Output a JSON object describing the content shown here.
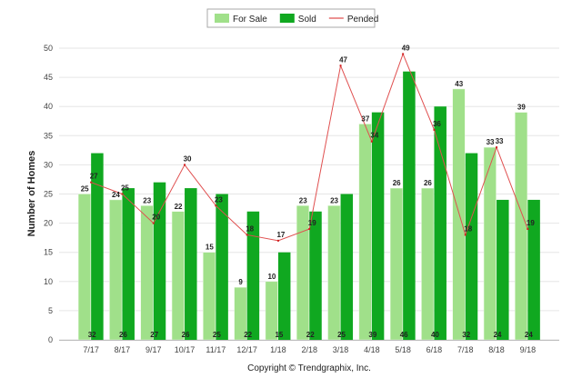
{
  "chart_data": {
    "type": "bar",
    "ylabel": "Number of Homes",
    "footer": "Copyright © Trendgraphix, Inc.",
    "ylim": [
      0,
      50
    ],
    "yticks": [
      0,
      5,
      10,
      15,
      20,
      25,
      30,
      35,
      40,
      45,
      50
    ],
    "grid": true,
    "legend_position": "top",
    "categories": [
      "7/17",
      "8/17",
      "9/17",
      "10/17",
      "11/17",
      "12/17",
      "1/18",
      "2/18",
      "3/18",
      "4/18",
      "5/18",
      "6/18",
      "7/18",
      "8/18",
      "9/18"
    ],
    "series": [
      {
        "name": "For Sale",
        "kind": "bar",
        "color": "#a0e08a",
        "values": [
          25,
          24,
          23,
          22,
          15,
          9,
          10,
          23,
          23,
          37,
          26,
          26,
          43,
          33,
          39
        ]
      },
      {
        "name": "Sold",
        "kind": "bar",
        "color": "#10a820",
        "values": [
          32,
          26,
          27,
          26,
          25,
          22,
          15,
          22,
          25,
          39,
          46,
          40,
          32,
          24,
          24
        ]
      },
      {
        "name": "Pended",
        "kind": "line",
        "color": "#e05050",
        "values": [
          27,
          25,
          20,
          30,
          23,
          18,
          17,
          19,
          47,
          34,
          49,
          36,
          18,
          33,
          19
        ]
      }
    ]
  }
}
